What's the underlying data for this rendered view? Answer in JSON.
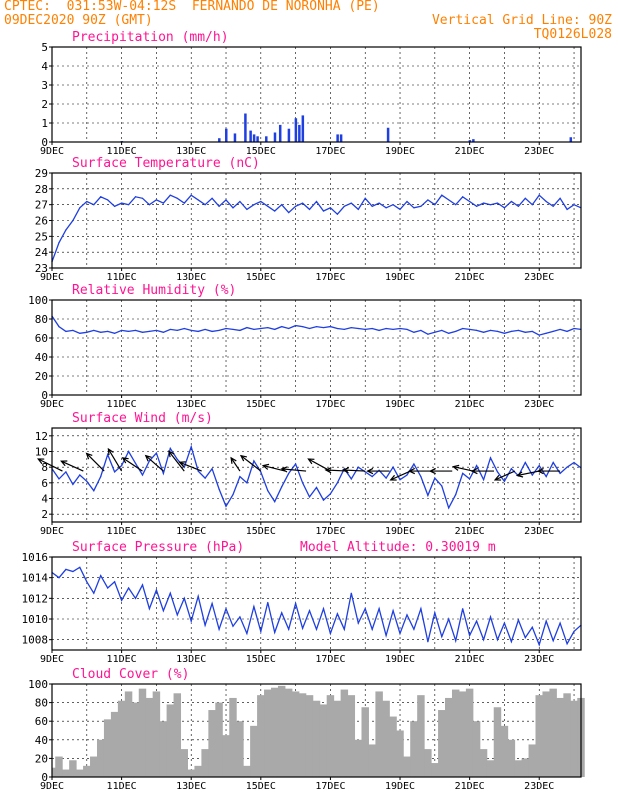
{
  "header": {
    "line1_left": "CPTEC:  031:53W-04:12S  FERNANDO DE NORONHA (PE)",
    "line2_left": "09DEC2020 90Z (GMT)",
    "line2_right": "Vertical Grid Line: 90Z",
    "line3_right": "TQ0126L028"
  },
  "colors": {
    "header": "#ff8000",
    "panel_title": "#ff1493",
    "line": "#1f3fe0",
    "cloud": "#a9a9a9"
  },
  "x_tick_labels": [
    "9DEC",
    "11DEC",
    "13DEC",
    "15DEC",
    "17DEC",
    "19DEC",
    "21DEC",
    "23DEC"
  ],
  "x_tick_days": [
    9,
    11,
    13,
    15,
    17,
    19,
    21,
    23
  ],
  "x_range_days": [
    9,
    24.2
  ],
  "chart_data": [
    {
      "id": "precip",
      "type": "bar",
      "title": "Precipitation (mm/h)",
      "ylim": [
        0,
        5
      ],
      "yticks": [
        0,
        1,
        2,
        3,
        4,
        5
      ],
      "x_days": [
        11,
        13.8,
        14.0,
        14.25,
        14.55,
        14.7,
        14.8,
        14.9,
        15.15,
        15.4,
        15.55,
        15.8,
        16.0,
        16.1,
        16.2,
        17.2,
        17.3,
        18.65,
        21.0,
        21.1,
        23.9
      ],
      "values": [
        0.05,
        0.2,
        0.7,
        0.45,
        1.5,
        0.6,
        0.4,
        0.3,
        0.3,
        0.5,
        0.9,
        0.7,
        1.25,
        0.9,
        1.4,
        0.4,
        0.4,
        0.75,
        0.1,
        0.15,
        0.25
      ]
    },
    {
      "id": "temp",
      "type": "line",
      "title": "Surface Temperature (nC)",
      "ylim": [
        23,
        29
      ],
      "yticks": [
        23,
        24,
        25,
        26,
        27,
        28,
        29
      ],
      "x_days": [
        9,
        9.2,
        9.4,
        9.6,
        9.8,
        10,
        10.2,
        10.4,
        10.6,
        10.8,
        11,
        11.2,
        11.4,
        11.6,
        11.8,
        12,
        12.2,
        12.4,
        12.6,
        12.8,
        13,
        13.2,
        13.4,
        13.6,
        13.8,
        14,
        14.2,
        14.4,
        14.6,
        14.8,
        15,
        15.2,
        15.4,
        15.6,
        15.8,
        16,
        16.2,
        16.4,
        16.6,
        16.8,
        17,
        17.2,
        17.4,
        17.6,
        17.8,
        18,
        18.2,
        18.4,
        18.6,
        18.8,
        19,
        19.2,
        19.4,
        19.6,
        19.8,
        20,
        20.2,
        20.4,
        20.6,
        20.8,
        21,
        21.2,
        21.4,
        21.6,
        21.8,
        22,
        22.2,
        22.4,
        22.6,
        22.8,
        23,
        23.2,
        23.4,
        23.6,
        23.8,
        24,
        24.2
      ],
      "values": [
        23.4,
        24.6,
        25.4,
        26.0,
        26.8,
        27.2,
        27.0,
        27.5,
        27.3,
        26.9,
        27.1,
        27.0,
        27.5,
        27.4,
        27.0,
        27.3,
        27.1,
        27.6,
        27.4,
        27.1,
        27.6,
        27.3,
        27.0,
        27.4,
        26.9,
        27.3,
        26.8,
        27.2,
        26.7,
        27.0,
        27.2,
        26.9,
        26.6,
        27.0,
        26.5,
        26.9,
        27.1,
        26.7,
        27.2,
        26.6,
        26.8,
        26.4,
        26.9,
        27.1,
        26.7,
        27.4,
        26.9,
        27.1,
        26.8,
        27.0,
        26.7,
        27.2,
        26.8,
        26.9,
        27.3,
        27.0,
        27.6,
        27.3,
        27.0,
        27.5,
        27.2,
        26.9,
        27.1,
        27.0,
        27.1,
        26.8,
        27.2,
        26.9,
        27.4,
        27.0,
        27.6,
        27.2,
        26.9,
        27.4,
        26.7,
        27.0,
        26.8
      ]
    },
    {
      "id": "rh",
      "type": "line",
      "title": "Relative Humidity (%)",
      "ylim": [
        0,
        100
      ],
      "yticks": [
        0,
        20,
        40,
        60,
        80,
        100
      ],
      "x_days": [
        9,
        9.2,
        9.4,
        9.6,
        9.8,
        10,
        10.2,
        10.4,
        10.6,
        10.8,
        11,
        11.2,
        11.4,
        11.6,
        11.8,
        12,
        12.2,
        12.4,
        12.6,
        12.8,
        13,
        13.2,
        13.4,
        13.6,
        13.8,
        14,
        14.2,
        14.4,
        14.6,
        14.8,
        15,
        15.2,
        15.4,
        15.6,
        15.8,
        16,
        16.2,
        16.4,
        16.6,
        16.8,
        17,
        17.2,
        17.4,
        17.6,
        17.8,
        18,
        18.2,
        18.4,
        18.6,
        18.8,
        19,
        19.2,
        19.4,
        19.6,
        19.8,
        20,
        20.2,
        20.4,
        20.6,
        20.8,
        21,
        21.2,
        21.4,
        21.6,
        21.8,
        22,
        22.2,
        22.4,
        22.6,
        22.8,
        23,
        23.2,
        23.4,
        23.6,
        23.8,
        24,
        24.2
      ],
      "values": [
        83,
        72,
        67,
        68,
        65,
        66,
        68,
        66,
        67,
        65,
        68,
        67,
        68,
        66,
        67,
        68,
        66,
        69,
        68,
        70,
        68,
        67,
        69,
        67,
        68,
        70,
        69,
        68,
        71,
        69,
        70,
        71,
        69,
        72,
        70,
        73,
        72,
        70,
        72,
        71,
        72,
        70,
        69,
        71,
        70,
        69,
        70,
        68,
        70,
        69,
        70,
        69,
        66,
        68,
        64,
        66,
        68,
        65,
        67,
        70,
        69,
        68,
        66,
        68,
        67,
        65,
        67,
        68,
        66,
        67,
        63,
        65,
        67,
        69,
        67,
        70,
        69
      ]
    },
    {
      "id": "wind",
      "type": "line",
      "title": "Surface Wind (m/s)",
      "ylim": [
        1,
        13
      ],
      "yticks": [
        2,
        4,
        6,
        8,
        10,
        12
      ],
      "x_days": [
        9,
        9.2,
        9.4,
        9.6,
        9.8,
        10,
        10.2,
        10.4,
        10.6,
        10.8,
        11,
        11.2,
        11.4,
        11.6,
        11.8,
        12,
        12.2,
        12.4,
        12.6,
        12.8,
        13,
        13.2,
        13.4,
        13.6,
        13.8,
        14,
        14.2,
        14.4,
        14.6,
        14.8,
        15,
        15.2,
        15.4,
        15.6,
        15.8,
        16,
        16.2,
        16.4,
        16.6,
        16.8,
        17,
        17.2,
        17.4,
        17.6,
        17.8,
        18,
        18.2,
        18.4,
        18.6,
        18.8,
        19,
        19.2,
        19.4,
        19.6,
        19.8,
        20,
        20.2,
        20.4,
        20.6,
        20.8,
        21,
        21.2,
        21.4,
        21.6,
        21.8,
        22,
        22.2,
        22.4,
        22.6,
        22.8,
        23,
        23.2,
        23.4,
        23.6,
        23.8,
        24,
        24.2
      ],
      "values": [
        7.8,
        6.5,
        7.4,
        5.8,
        7.0,
        6.2,
        5.0,
        6.8,
        9.6,
        7.4,
        8.2,
        10.0,
        8.5,
        7.0,
        8.8,
        9.8,
        7.2,
        10.4,
        9.0,
        8.0,
        10.6,
        7.5,
        6.6,
        7.8,
        5.2,
        3.0,
        4.5,
        6.8,
        6.0,
        8.8,
        7.4,
        5.0,
        3.6,
        5.5,
        7.2,
        8.4,
        6.0,
        4.2,
        5.4,
        3.8,
        4.6,
        6.0,
        7.8,
        6.5,
        8.0,
        7.4,
        6.8,
        7.6,
        6.6,
        8.0,
        6.4,
        7.0,
        8.4,
        6.8,
        4.4,
        6.6,
        5.6,
        2.8,
        4.5,
        7.2,
        6.5,
        8.2,
        6.4,
        9.2,
        7.4,
        6.2,
        7.8,
        6.9,
        8.6,
        7.0,
        8.2,
        6.8,
        8.6,
        7.2,
        8.0,
        8.6,
        7.9
      ],
      "arrows": [
        {
          "day": 9.3,
          "dx": -1.1,
          "dy": 0.55
        },
        {
          "day": 9.9,
          "dx": -1.0,
          "dy": 0.45
        },
        {
          "day": 10.5,
          "dx": -0.8,
          "dy": 0.8
        },
        {
          "day": 11.0,
          "dx": -0.6,
          "dy": 1.0
        },
        {
          "day": 11.6,
          "dx": -0.9,
          "dy": 0.6
        },
        {
          "day": 12.2,
          "dx": -0.8,
          "dy": 0.7
        },
        {
          "day": 12.8,
          "dx": -0.7,
          "dy": 0.9
        },
        {
          "day": 13.3,
          "dx": -1.0,
          "dy": 0.4
        },
        {
          "day": 14.4,
          "dx": -0.4,
          "dy": 0.6
        },
        {
          "day": 15.0,
          "dx": -0.9,
          "dy": 0.7
        },
        {
          "day": 15.7,
          "dx": -1.0,
          "dy": 0.25
        },
        {
          "day": 16.3,
          "dx": -1.1,
          "dy": 0.1
        },
        {
          "day": 17.0,
          "dx": -1.0,
          "dy": 0.55
        },
        {
          "day": 17.5,
          "dx": -1.0,
          "dy": 0.05
        },
        {
          "day": 18.0,
          "dx": -1.0,
          "dy": 0.05
        },
        {
          "day": 18.7,
          "dx": -1.0,
          "dy": 0.0
        },
        {
          "day": 19.3,
          "dx": -0.9,
          "dy": -0.4
        },
        {
          "day": 19.9,
          "dx": -1.0,
          "dy": 0.0
        },
        {
          "day": 20.5,
          "dx": -1.0,
          "dy": 0.0
        },
        {
          "day": 21.1,
          "dx": -0.9,
          "dy": 0.2
        },
        {
          "day": 21.7,
          "dx": -1.0,
          "dy": 0.0
        },
        {
          "day": 22.3,
          "dx": -0.9,
          "dy": -0.4
        },
        {
          "day": 23.0,
          "dx": -1.0,
          "dy": -0.2
        },
        {
          "day": 23.6,
          "dx": -1.0,
          "dy": 0.0
        }
      ]
    },
    {
      "id": "pressure",
      "type": "line",
      "title": "Surface Pressure (hPa)",
      "subtitle": "Model Altitude: 0.30019 m",
      "ylim": [
        1007,
        1016
      ],
      "yticks": [
        1008,
        1010,
        1012,
        1014,
        1016
      ],
      "x_days": [
        9,
        9.2,
        9.4,
        9.6,
        9.8,
        10,
        10.2,
        10.4,
        10.6,
        10.8,
        11,
        11.2,
        11.4,
        11.6,
        11.8,
        12,
        12.2,
        12.4,
        12.6,
        12.8,
        13,
        13.2,
        13.4,
        13.6,
        13.8,
        14,
        14.2,
        14.4,
        14.6,
        14.8,
        15,
        15.2,
        15.4,
        15.6,
        15.8,
        16,
        16.2,
        16.4,
        16.6,
        16.8,
        17,
        17.2,
        17.4,
        17.6,
        17.8,
        18,
        18.2,
        18.4,
        18.6,
        18.8,
        19,
        19.2,
        19.4,
        19.6,
        19.8,
        20,
        20.2,
        20.4,
        20.6,
        20.8,
        21,
        21.2,
        21.4,
        21.6,
        21.8,
        22,
        22.2,
        22.4,
        22.6,
        22.8,
        23,
        23.2,
        23.4,
        23.6,
        23.8,
        24,
        24.2
      ],
      "values": [
        1014.5,
        1014.0,
        1014.8,
        1014.6,
        1015.0,
        1013.6,
        1012.5,
        1014.2,
        1013.0,
        1013.6,
        1011.8,
        1013.0,
        1012.0,
        1013.3,
        1011.0,
        1012.8,
        1010.8,
        1012.5,
        1010.4,
        1012.0,
        1009.8,
        1012.2,
        1009.4,
        1011.5,
        1009.0,
        1011.0,
        1009.3,
        1010.2,
        1008.6,
        1011.2,
        1008.8,
        1011.6,
        1008.7,
        1010.6,
        1009.0,
        1011.5,
        1009.1,
        1010.8,
        1009.0,
        1011.0,
        1008.6,
        1010.5,
        1009.0,
        1012.5,
        1009.6,
        1011.0,
        1009.0,
        1011.0,
        1008.4,
        1010.8,
        1008.6,
        1010.4,
        1009.0,
        1011.0,
        1007.8,
        1010.6,
        1008.3,
        1010.0,
        1007.9,
        1011.0,
        1008.4,
        1009.8,
        1008.0,
        1010.2,
        1008.0,
        1009.6,
        1007.8,
        1009.9,
        1008.2,
        1009.2,
        1007.5,
        1009.8,
        1007.9,
        1009.6,
        1007.6,
        1008.8,
        1009.4
      ]
    },
    {
      "id": "cloud",
      "type": "area",
      "title": "Cloud Cover (%)",
      "ylim": [
        0,
        100
      ],
      "yticks": [
        0,
        20,
        40,
        60,
        80,
        100
      ],
      "x_days": [
        9,
        9.2,
        9.4,
        9.6,
        9.8,
        10,
        10.2,
        10.4,
        10.6,
        10.8,
        11,
        11.2,
        11.4,
        11.6,
        11.8,
        12,
        12.2,
        12.4,
        12.6,
        12.8,
        13,
        13.2,
        13.4,
        13.6,
        13.8,
        14,
        14.2,
        14.4,
        14.6,
        14.8,
        15,
        15.2,
        15.4,
        15.6,
        15.8,
        16,
        16.2,
        16.4,
        16.6,
        16.8,
        17,
        17.2,
        17.4,
        17.6,
        17.8,
        18,
        18.2,
        18.4,
        18.6,
        18.8,
        19,
        19.2,
        19.4,
        19.6,
        19.8,
        20,
        20.2,
        20.4,
        20.6,
        20.8,
        21,
        21.2,
        21.4,
        21.6,
        21.8,
        22,
        22.2,
        22.4,
        22.6,
        22.8,
        23,
        23.2,
        23.4,
        23.6,
        23.8,
        24,
        24.2
      ],
      "values": [
        10,
        22,
        8,
        18,
        8,
        12,
        22,
        40,
        62,
        70,
        82,
        92,
        80,
        95,
        85,
        92,
        60,
        78,
        90,
        30,
        8,
        12,
        30,
        72,
        80,
        45,
        85,
        60,
        12,
        55,
        88,
        94,
        96,
        98,
        95,
        92,
        90,
        88,
        82,
        78,
        88,
        82,
        94,
        88,
        40,
        75,
        35,
        92,
        82,
        65,
        50,
        22,
        60,
        88,
        30,
        15,
        72,
        85,
        94,
        92,
        95,
        60,
        30,
        18,
        75,
        55,
        40,
        18,
        20,
        35,
        88,
        92,
        95,
        85,
        90,
        82,
        85
      ]
    }
  ]
}
